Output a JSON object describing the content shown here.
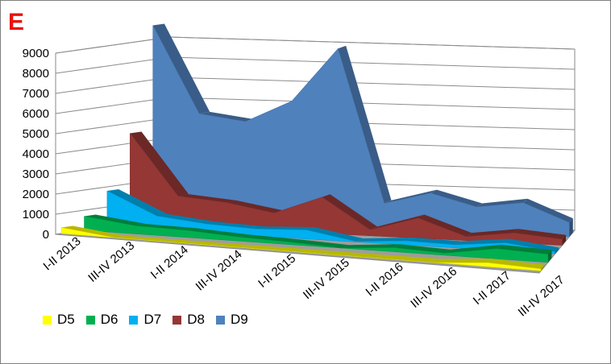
{
  "panel_label": "E",
  "chart_data": {
    "type": "area",
    "title": "",
    "xlabel": "",
    "ylabel": "",
    "view": "3d",
    "grid": true,
    "legend_position": "bottom-left",
    "ylim": [
      0,
      9000
    ],
    "yticks": [
      "0",
      "1000",
      "2000",
      "3000",
      "4000",
      "5000",
      "6000",
      "7000",
      "8000",
      "9000"
    ],
    "categories": [
      "I-II 2013",
      "III-IV 2013",
      "I-II 2014",
      "III-IV 2014",
      "I-II 2015",
      "III-IV 2015",
      "I-II 2016",
      "III-IV 2016",
      "I-II 2017",
      "III-IV 2017"
    ],
    "series": [
      {
        "name": "D5",
        "color": "#ffff00",
        "values": [
          300,
          0,
          0,
          0,
          0,
          0,
          0,
          0,
          200,
          100
        ]
      },
      {
        "name": "D6",
        "color": "#00b050",
        "values": [
          700,
          400,
          350,
          200,
          120,
          0,
          200,
          100,
          500,
          400
        ]
      },
      {
        "name": "D7",
        "color": "#00b0f0",
        "values": [
          1800,
          700,
          450,
          350,
          450,
          20,
          200,
          150,
          400,
          100
        ]
      },
      {
        "name": "D8",
        "color": "#953735",
        "values": [
          4500,
          1500,
          1300,
          900,
          1800,
          300,
          1000,
          200,
          500,
          300
        ]
      },
      {
        "name": "D9",
        "color": "#4f81bd",
        "values": [
          9700,
          5400,
          5100,
          6200,
          8900,
          1300,
          1900,
          1300,
          1600,
          700
        ]
      }
    ]
  }
}
